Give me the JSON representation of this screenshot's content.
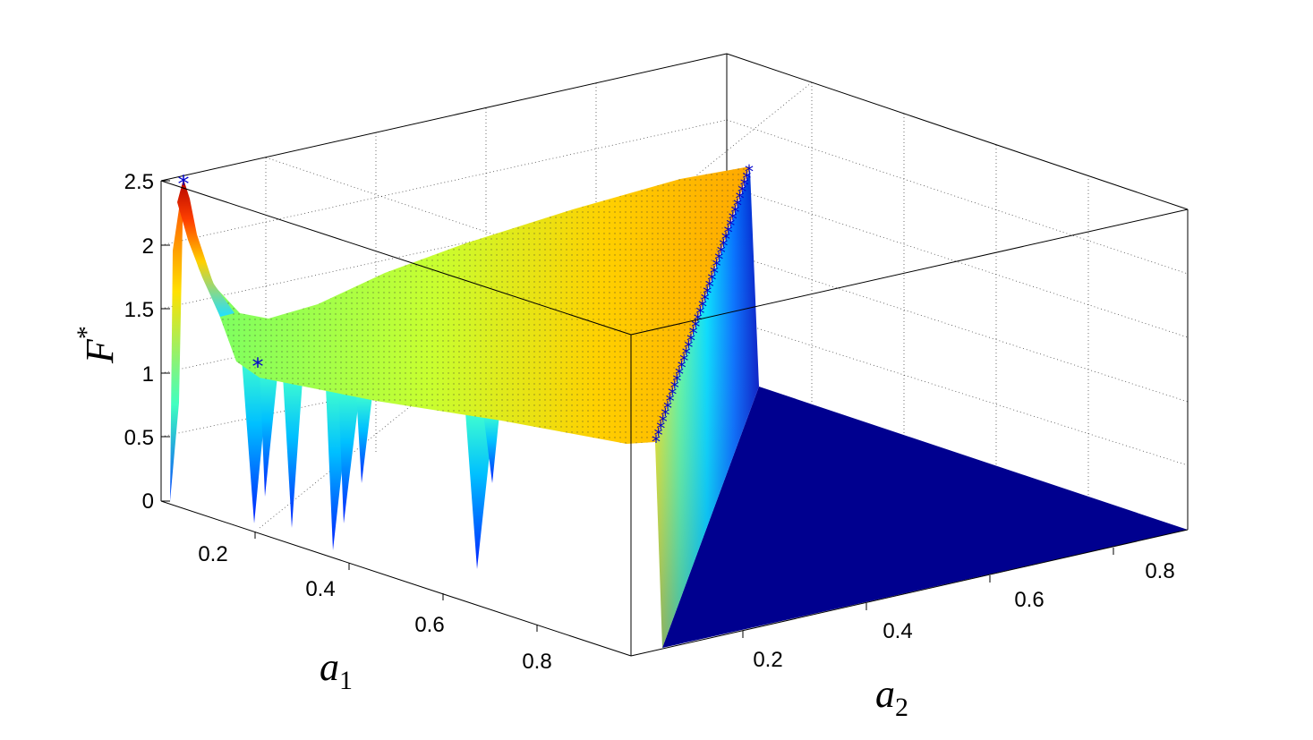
{
  "chart_data": {
    "type": "surface",
    "title": "",
    "xlabel": "a",
    "xlabel_sub": "1",
    "ylabel": "a",
    "ylabel_sub": "2",
    "zlabel": "F",
    "zlabel_sup": "*",
    "xlim": [
      0,
      1
    ],
    "ylim": [
      0,
      1
    ],
    "zlim": [
      0,
      2.5
    ],
    "x_ticks": [
      "0.2",
      "0.4",
      "0.6",
      "0.8"
    ],
    "y_ticks": [
      "0.2",
      "0.4",
      "0.6",
      "0.8"
    ],
    "z_ticks": [
      "0",
      "0.5",
      "1",
      "1.5",
      "2",
      "2.5"
    ],
    "grid": true,
    "colormap": [
      "#00008f",
      "#0000ff",
      "#00ffff",
      "#7fff7f",
      "#ffff00",
      "#ff8000",
      "#cc0000"
    ],
    "description_points": {
      "peak": {
        "a1": 0.01,
        "a2": 0.01,
        "F": 2.5
      },
      "secondary_marker": {
        "a1": 0.12,
        "a2": 0.01,
        "F": 1.08
      },
      "ridge_values_along_a1": [
        {
          "a1": 0.0,
          "F": 2.5
        },
        {
          "a1": 0.05,
          "F": 1.5
        },
        {
          "a1": 0.15,
          "F": 1.3
        },
        {
          "a1": 0.4,
          "F": 1.1
        },
        {
          "a1": 0.7,
          "F": 1.0
        },
        {
          "a1": 0.99,
          "F": 0.92
        }
      ],
      "marker_diagonal": {
        "description": "markers along a1 + a2 = 1",
        "F_range": [
          0.9,
          1.9
        ]
      },
      "zero_region": "a1 + a2 > 1 (F = 0)",
      "dips_at_a1": [
        0.14,
        0.2,
        0.27,
        0.31,
        0.53
      ]
    },
    "marker_symbol": "*",
    "marker_color": "#0000cc"
  }
}
